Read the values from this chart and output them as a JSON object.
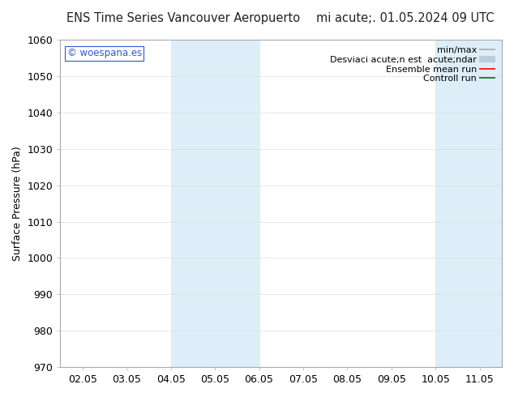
{
  "title_left": "ENS Time Series Vancouver Aeropuerto",
  "title_right": "mi acute;. 01.05.2024 09 UTC",
  "ylabel": "Surface Pressure (hPa)",
  "ylim": [
    970,
    1060
  ],
  "yticks": [
    970,
    980,
    990,
    1000,
    1010,
    1020,
    1030,
    1040,
    1050,
    1060
  ],
  "xtick_labels": [
    "02.05",
    "03.05",
    "04.05",
    "05.05",
    "06.05",
    "07.05",
    "08.05",
    "09.05",
    "10.05",
    "11.05"
  ],
  "xtick_positions": [
    0,
    1,
    2,
    3,
    4,
    5,
    6,
    7,
    8,
    9
  ],
  "xmin": -0.5,
  "xmax": 9.5,
  "shaded_regions": [
    {
      "xmin": 2.0,
      "xmax": 4.0,
      "color": "#ddeef8"
    },
    {
      "xmin": 8.0,
      "xmax": 9.5,
      "color": "#ddeef8"
    }
  ],
  "watermark_text": "© woespana.es",
  "watermark_color": "#3355cc",
  "background_color": "#ffffff",
  "legend_entries": [
    {
      "label": "min/max",
      "color": "#aaaaaa",
      "lw": 1.2
    },
    {
      "label": "Desviaci acute;n est  acute;ndar",
      "color": "#bbccdd",
      "lw": 6
    },
    {
      "label": "Ensemble mean run",
      "color": "#ff0000",
      "lw": 1.2
    },
    {
      "label": "Controll run",
      "color": "#007700",
      "lw": 1.2
    }
  ],
  "spine_color": "#aaaaaa",
  "grid_color": "#dddddd",
  "font_size": 9,
  "title_fontsize": 10.5
}
